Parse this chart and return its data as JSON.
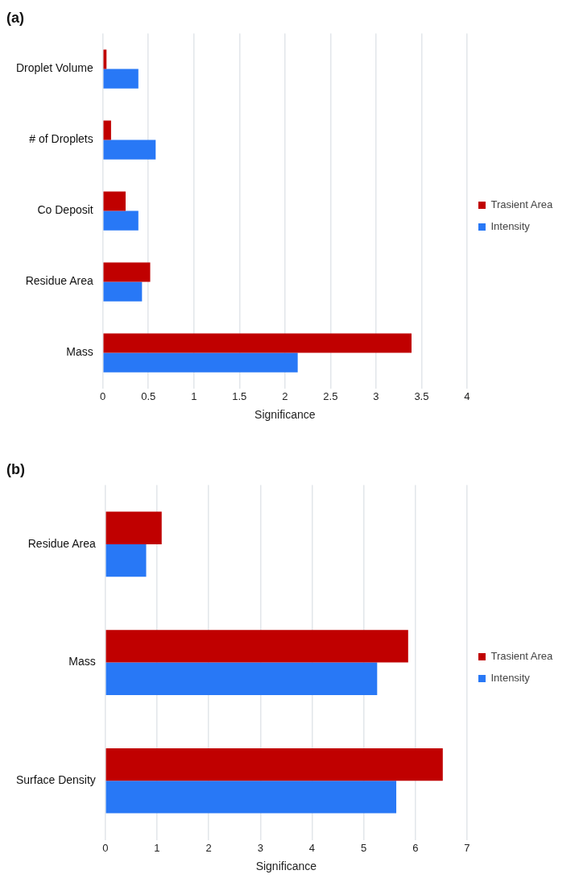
{
  "chart_data": [
    {
      "type": "bar",
      "orientation": "horizontal",
      "title": "(a)",
      "xlabel": "Significance",
      "categories": [
        "Droplet Volume",
        "# of Droplets",
        "Co Deposit",
        "Residue Area",
        "Mass"
      ],
      "series": [
        {
          "name": "Trasient Area",
          "color": "#c00000",
          "values": [
            0.04,
            0.09,
            0.25,
            0.52,
            3.39
          ]
        },
        {
          "name": "Intensity",
          "color": "#2878f6",
          "values": [
            0.39,
            0.58,
            0.39,
            0.43,
            2.14
          ]
        }
      ],
      "xlim": [
        0,
        4
      ],
      "xticks": [
        0,
        0.5,
        1,
        1.5,
        2,
        2.5,
        3,
        3.5,
        4
      ],
      "grid": "x",
      "legend": "right"
    },
    {
      "type": "bar",
      "orientation": "horizontal",
      "title": "(b)",
      "xlabel": "Significance",
      "categories": [
        "Residue Area",
        "Mass",
        "Surface Density"
      ],
      "series": [
        {
          "name": "Trasient Area",
          "color": "#c00000",
          "values": [
            1.09,
            5.86,
            6.53
          ]
        },
        {
          "name": "Intensity",
          "color": "#2878f6",
          "values": [
            0.79,
            5.26,
            5.63
          ]
        }
      ],
      "xlim": [
        0,
        7
      ],
      "xticks": [
        0,
        1,
        2,
        3,
        4,
        5,
        6,
        7
      ],
      "grid": "x",
      "legend": "right"
    }
  ]
}
